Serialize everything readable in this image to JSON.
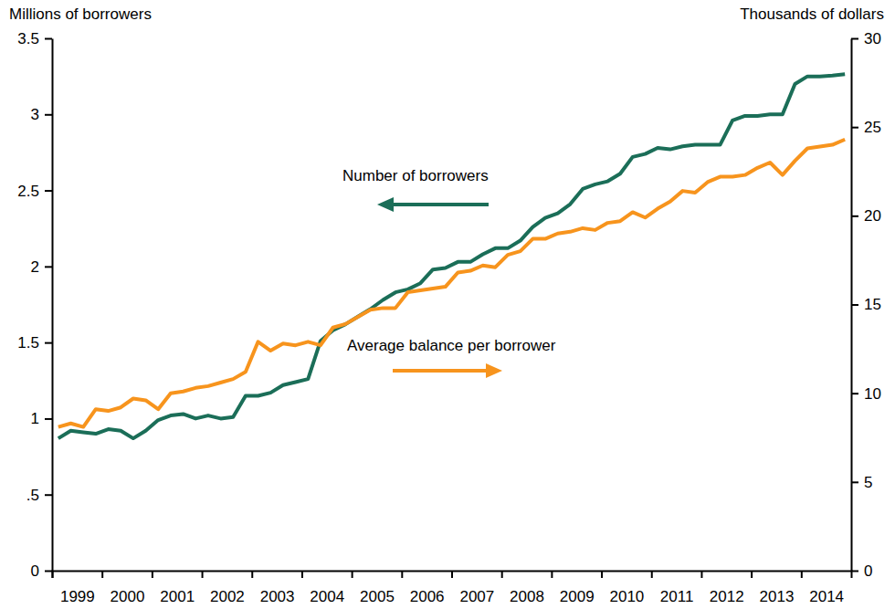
{
  "chart_data": {
    "type": "line",
    "y_label": "Millions of borrowers",
    "y2_label": "Thousands of dollars",
    "categories": [
      "1999",
      null,
      null,
      null,
      "2000",
      null,
      null,
      null,
      "2001",
      null,
      null,
      null,
      "2002",
      null,
      null,
      null,
      "2003",
      null,
      null,
      null,
      "2004",
      null,
      null,
      null,
      "2005",
      null,
      null,
      null,
      "2006",
      null,
      null,
      null,
      "2007",
      null,
      null,
      null,
      "2008",
      null,
      null,
      null,
      "2009",
      null,
      null,
      null,
      "2010",
      null,
      null,
      null,
      "2011",
      null,
      null,
      null,
      "2012",
      null,
      null,
      null,
      "2013",
      null,
      null,
      null,
      "2014",
      null,
      null,
      null
    ],
    "series": [
      {
        "name": "Number of borrowers",
        "color": "#1b6e58",
        "axis": "y",
        "values": [
          0.87,
          0.92,
          0.91,
          0.9,
          0.93,
          0.92,
          0.87,
          0.92,
          0.99,
          1.02,
          1.03,
          1.0,
          1.02,
          1.0,
          1.01,
          1.15,
          1.15,
          1.17,
          1.22,
          1.24,
          1.26,
          1.51,
          1.58,
          1.62,
          1.67,
          1.72,
          1.78,
          1.83,
          1.85,
          1.89,
          1.98,
          1.99,
          2.03,
          2.03,
          2.08,
          2.12,
          2.12,
          2.17,
          2.26,
          2.32,
          2.35,
          2.41,
          2.51,
          2.54,
          2.56,
          2.61,
          2.72,
          2.74,
          2.78,
          2.77,
          2.79,
          2.8,
          2.8,
          2.8,
          2.96,
          2.99,
          2.99,
          3.0,
          3.0,
          3.2,
          3.25,
          3.25,
          3.255,
          3.265
        ]
      },
      {
        "name": "Average balance per borrower",
        "color": "#f7941d",
        "axis": "y2",
        "values": [
          8.1,
          8.3,
          8.1,
          9.1,
          9.0,
          9.2,
          9.7,
          9.6,
          9.1,
          10.0,
          10.1,
          10.3,
          10.4,
          10.6,
          10.8,
          11.2,
          12.9,
          12.4,
          12.8,
          12.7,
          12.9,
          12.7,
          13.7,
          13.9,
          14.3,
          14.7,
          14.8,
          14.8,
          15.7,
          15.8,
          15.9,
          16.0,
          16.8,
          16.9,
          17.2,
          17.1,
          17.8,
          18.0,
          18.7,
          18.7,
          19.0,
          19.1,
          19.3,
          19.2,
          19.6,
          19.7,
          20.2,
          19.9,
          20.4,
          20.8,
          21.4,
          21.3,
          21.9,
          22.2,
          22.2,
          22.3,
          22.7,
          23.0,
          22.3,
          23.1,
          23.8,
          23.9,
          24.0,
          24.3
        ]
      }
    ],
    "ylim": [
      0,
      3.5
    ],
    "yticks": [
      0,
      {
        "value": 0.5,
        "label": ".5"
      },
      1,
      1.5,
      2,
      2.5,
      3,
      3.5
    ],
    "y2lim": [
      0,
      30
    ],
    "y2ticks": [
      0,
      5,
      10,
      15,
      20,
      25,
      30
    ]
  }
}
